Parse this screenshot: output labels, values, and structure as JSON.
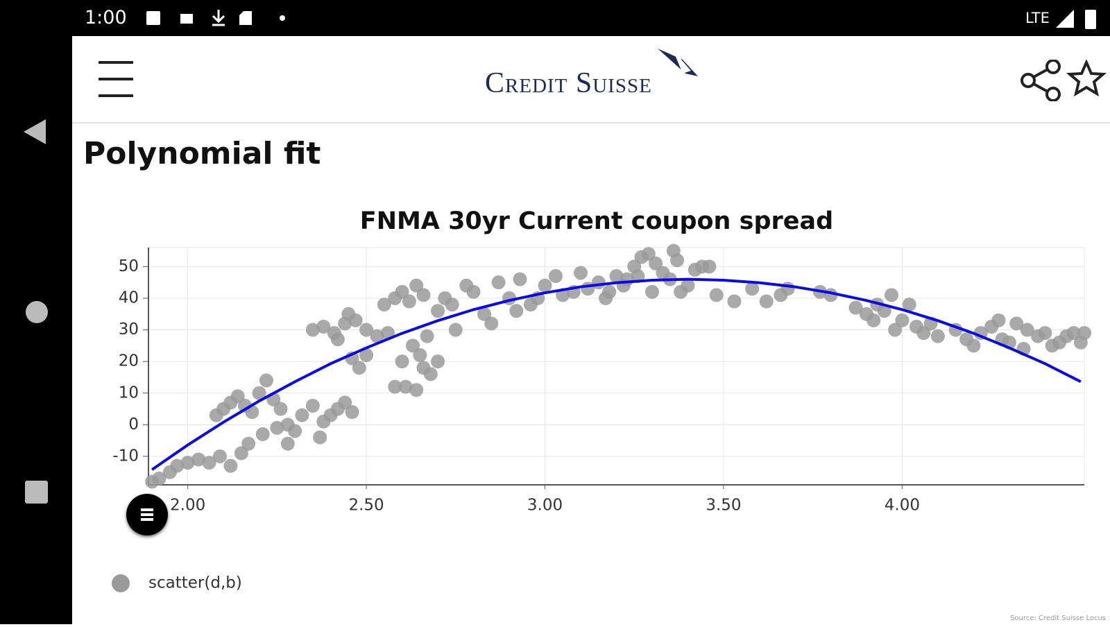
{
  "status_bar": {
    "time": "1:00",
    "network": "LTE"
  },
  "header": {
    "logo": "Credit Suisse"
  },
  "page_title": "Polynomial fit",
  "source": "Source: Credit Suisse Locus",
  "chart_data": {
    "type": "scatter",
    "title": "FNMA 30yr Current coupon spread",
    "xlim": [
      1.89,
      4.51
    ],
    "ylim": [
      -19,
      56
    ],
    "xticks": [
      {
        "value": 2,
        "label": "2.00"
      },
      {
        "value": 2.5,
        "label": "2.50"
      },
      {
        "value": 3,
        "label": "3.00"
      },
      {
        "value": 3.5,
        "label": "3.50"
      },
      {
        "value": 4,
        "label": "4.00"
      }
    ],
    "yticks": [
      -10,
      0,
      10,
      20,
      30,
      40,
      50
    ],
    "grid": true,
    "series": [
      {
        "name": "scatter(d,b)",
        "type": "scatter",
        "color": "#9a9a9a",
        "x": [
          1.9,
          1.92,
          1.95,
          1.97,
          2.0,
          2.03,
          2.06,
          2.09,
          2.12,
          2.15,
          2.17,
          2.08,
          2.1,
          2.12,
          2.14,
          2.16,
          2.18,
          2.2,
          2.22,
          2.24,
          2.26,
          2.28,
          2.3,
          2.32,
          2.35,
          2.38,
          2.4,
          2.42,
          2.44,
          2.46,
          2.28,
          2.25,
          2.37,
          2.21,
          2.35,
          2.38,
          2.41,
          2.44,
          2.47,
          2.5,
          2.53,
          2.56,
          2.45,
          2.42,
          2.5,
          2.48,
          2.46,
          2.55,
          2.58,
          2.6,
          2.62,
          2.64,
          2.66,
          2.58,
          2.61,
          2.64,
          2.66,
          2.68,
          2.7,
          2.63,
          2.67,
          2.7,
          2.72,
          2.74,
          2.75,
          2.65,
          2.6,
          2.78,
          2.8,
          2.83,
          2.85,
          2.87,
          2.9,
          2.93,
          2.96,
          3.0,
          3.03,
          3.05,
          3.08,
          2.98,
          2.92,
          3.1,
          3.12,
          3.15,
          3.18,
          3.2,
          3.22,
          3.25,
          3.27,
          3.29,
          3.31,
          3.33,
          3.35,
          3.37,
          3.4,
          3.42,
          3.3,
          3.23,
          3.17,
          3.38,
          3.36,
          3.26,
          3.44,
          3.46,
          3.48,
          3.53,
          3.58,
          3.62,
          3.66,
          3.68,
          3.77,
          3.8,
          3.87,
          3.9,
          3.92,
          3.95,
          3.97,
          4.0,
          4.02,
          4.04,
          4.06,
          4.08,
          4.1,
          3.93,
          3.98,
          4.15,
          4.18,
          4.2,
          4.22,
          4.25,
          4.28,
          4.3,
          4.32,
          4.35,
          4.38,
          4.4,
          4.42,
          4.44,
          4.46,
          4.48,
          4.5,
          4.51,
          4.34,
          4.27
        ],
        "values": [
          -18,
          -17,
          -15,
          -13,
          -12,
          -11,
          -12,
          -10,
          -13,
          -9,
          -6,
          3,
          5,
          7,
          9,
          6,
          4,
          10,
          14,
          8,
          5,
          0,
          -2,
          3,
          6,
          1,
          3,
          5,
          7,
          4,
          -6,
          -1,
          -4,
          -3,
          30,
          31,
          29,
          32,
          33,
          30,
          28,
          29,
          35,
          27,
          22,
          18,
          21,
          38,
          40,
          42,
          39,
          44,
          41,
          12,
          12,
          11,
          18,
          16,
          20,
          25,
          28,
          36,
          40,
          38,
          30,
          22,
          20,
          44,
          42,
          35,
          32,
          45,
          40,
          46,
          38,
          44,
          47,
          41,
          42,
          40,
          36,
          48,
          43,
          45,
          42,
          47,
          44,
          50,
          53,
          54,
          51,
          48,
          46,
          52,
          44,
          49,
          42,
          46,
          40,
          42,
          55,
          47,
          50,
          50,
          41,
          39,
          43,
          39,
          41,
          43,
          42,
          41,
          37,
          35,
          33,
          36,
          41,
          33,
          38,
          31,
          29,
          32,
          28,
          38,
          30,
          30,
          27,
          25,
          29,
          31,
          27,
          26,
          32,
          30,
          28,
          29,
          25,
          26,
          28,
          29,
          26,
          29,
          24,
          33
        ]
      },
      {
        "type": "line",
        "color": "#0b0bea",
        "x": [
          1.9,
          2.0,
          2.1,
          2.2,
          2.3,
          2.4,
          2.5,
          2.6,
          2.7,
          2.8,
          2.9,
          3.0,
          3.1,
          3.2,
          3.3,
          3.4,
          3.5,
          3.6,
          3.7,
          3.8,
          3.9,
          4.0,
          4.1,
          4.2,
          4.3,
          4.4,
          4.5
        ],
        "values": [
          -14.2,
          -6.4,
          0.8,
          7.5,
          13.6,
          19.3,
          24.3,
          28.9,
          32.9,
          36.4,
          39.3,
          41.7,
          43.6,
          44.9,
          45.7,
          46,
          45.7,
          44.9,
          43.6,
          41.7,
          39.3,
          36.4,
          32.9,
          28.9,
          24.3,
          19.3,
          13.6
        ]
      }
    ]
  }
}
